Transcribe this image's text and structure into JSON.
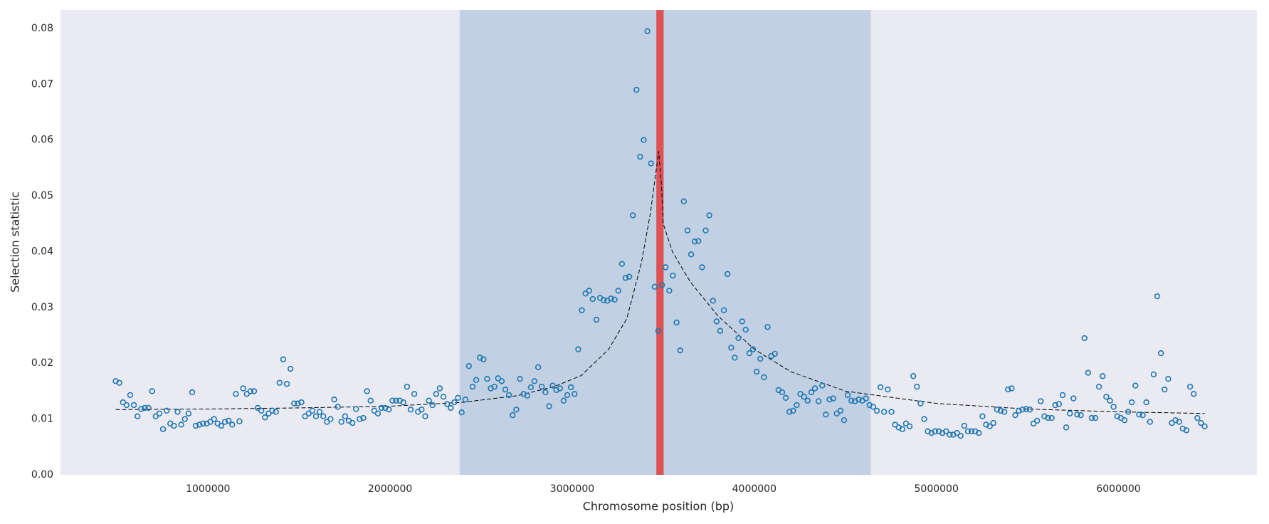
{
  "chart_data": {
    "type": "scatter",
    "xlabel": "Chromosome position (bp)",
    "ylabel": "Selection statistic",
    "xlim": [
      190000,
      6760000
    ],
    "ylim": [
      0,
      0.0833
    ],
    "xticks": [
      1000000,
      2000000,
      3000000,
      4000000,
      5000000,
      6000000
    ],
    "yticks": [
      {
        "value": 0,
        "label": "0.00"
      },
      {
        "value": 0.01,
        "label": "0.01"
      },
      {
        "value": 0.02,
        "label": "0.02"
      },
      {
        "value": 0.03,
        "label": "0.03"
      },
      {
        "value": 0.04,
        "label": "0.04"
      },
      {
        "value": 0.05,
        "label": "0.05"
      },
      {
        "value": 0.06,
        "label": "0.06"
      },
      {
        "value": 0.07,
        "label": "0.07"
      },
      {
        "value": 0.08,
        "label": "0.08"
      }
    ],
    "grid": true,
    "regions": [
      {
        "span": [
          2382000,
          4640000
        ],
        "color": "#4682b4",
        "opacity": 0.25
      },
      {
        "span": [
          3462000,
          3502000
        ],
        "color": "#e03c3c",
        "opacity": 0.85
      }
    ],
    "x": [
      493000,
      513000,
      533000,
      553000,
      573000,
      593000,
      613000,
      633000,
      653000,
      673000,
      693000,
      713000,
      733000,
      753000,
      773000,
      793000,
      813000,
      833000,
      853000,
      873000,
      893000,
      913000,
      933000,
      953000,
      973000,
      993000,
      1013000,
      1033000,
      1053000,
      1073000,
      1093000,
      1113000,
      1133000,
      1153000,
      1173000,
      1193000,
      1213000,
      1233000,
      1253000,
      1273000,
      1293000,
      1313000,
      1333000,
      1353000,
      1373000,
      1393000,
      1413000,
      1433000,
      1453000,
      1473000,
      1493000,
      1513000,
      1533000,
      1553000,
      1573000,
      1593000,
      1613000,
      1633000,
      1653000,
      1673000,
      1693000,
      1713000,
      1733000,
      1753000,
      1773000,
      1793000,
      1813000,
      1833000,
      1853000,
      1873000,
      1893000,
      1913000,
      1933000,
      1953000,
      1973000,
      1993000,
      2013000,
      2033000,
      2053000,
      2073000,
      2093000,
      2113000,
      2133000,
      2153000,
      2173000,
      2193000,
      2213000,
      2233000,
      2253000,
      2273000,
      2293000,
      2313000,
      2333000,
      2353000,
      2373000,
      2393000,
      2413000,
      2433000,
      2453000,
      2473000,
      2493000,
      2513000,
      2533000,
      2553000,
      2573000,
      2593000,
      2613000,
      2633000,
      2653000,
      2673000,
      2693000,
      2713000,
      2733000,
      2753000,
      2773000,
      2793000,
      2813000,
      2833000,
      2853000,
      2873000,
      2893000,
      2913000,
      2933000,
      2953000,
      2973000,
      2993000,
      3013000,
      3033000,
      3053000,
      3073000,
      3093000,
      3113000,
      3133000,
      3153000,
      3173000,
      3193000,
      3213000,
      3233000,
      3253000,
      3273000,
      3293000,
      3313000,
      3333000,
      3353000,
      3373000,
      3393000,
      3413000,
      3433000,
      3453000,
      3473000,
      3493000,
      3513000,
      3533000,
      3553000,
      3573000,
      3593000,
      3613000,
      3633000,
      3653000,
      3673000,
      3693000,
      3713000,
      3733000,
      3753000,
      3773000,
      3793000,
      3813000,
      3833000,
      3853000,
      3873000,
      3893000,
      3913000,
      3933000,
      3953000,
      3973000,
      3993000,
      4013000,
      4033000,
      4053000,
      4073000,
      4093000,
      4113000,
      4133000,
      4153000,
      4173000,
      4193000,
      4213000,
      4233000,
      4253000,
      4273000,
      4293000,
      4313000,
      4333000,
      4353000,
      4373000,
      4393000,
      4413000,
      4433000,
      4453000,
      4473000,
      4493000,
      4513000,
      4533000,
      4553000,
      4573000,
      4593000,
      4613000,
      4633000,
      4653000,
      4673000,
      4693000,
      4713000,
      4733000,
      4753000,
      4773000,
      4793000,
      4813000,
      4833000,
      4853000,
      4873000,
      4893000,
      4913000,
      4933000,
      4953000,
      4973000,
      4993000,
      5013000,
      5033000,
      5053000,
      5073000,
      5093000,
      5113000,
      5133000,
      5153000,
      5173000,
      5193000,
      5213000,
      5233000,
      5253000,
      5273000,
      5293000,
      5313000,
      5333000,
      5353000,
      5373000,
      5393000,
      5413000,
      5433000,
      5453000,
      5473000,
      5493000,
      5513000,
      5533000,
      5553000,
      5573000,
      5593000,
      5613000,
      5633000,
      5653000,
      5673000,
      5693000,
      5713000,
      5733000,
      5753000,
      5773000,
      5793000,
      5813000,
      5833000,
      5853000,
      5873000,
      5893000,
      5913000,
      5933000,
      5953000,
      5973000,
      5993000,
      6013000,
      6033000,
      6053000,
      6073000,
      6093000,
      6113000,
      6133000,
      6153000,
      6173000,
      6193000,
      6213000,
      6233000,
      6253000,
      6273000,
      6293000,
      6313000,
      6333000,
      6353000,
      6373000,
      6393000,
      6413000,
      6433000,
      6453000,
      6473000
    ],
    "series": [
      {
        "color": "#1f77b4",
        "values": [
          0.0168,
          0.0165,
          0.013,
          0.0125,
          0.0143,
          0.0125,
          0.0105,
          0.0118,
          0.012,
          0.012,
          0.015,
          0.0105,
          0.011,
          0.0082,
          0.0115,
          0.0092,
          0.0088,
          0.0113,
          0.009,
          0.01,
          0.011,
          0.0148,
          0.0088,
          0.009,
          0.0092,
          0.0092,
          0.0095,
          0.01,
          0.0092,
          0.0088,
          0.0095,
          0.0097,
          0.009,
          0.0145,
          0.0096,
          0.0155,
          0.0145,
          0.015,
          0.015,
          0.012,
          0.0115,
          0.0103,
          0.011,
          0.0115,
          0.0113,
          0.0165,
          0.0207,
          0.0163,
          0.019,
          0.0128,
          0.0128,
          0.013,
          0.0105,
          0.011,
          0.0115,
          0.0105,
          0.0113,
          0.0105,
          0.0095,
          0.01,
          0.0135,
          0.0122,
          0.0095,
          0.0105,
          0.0097,
          0.0093,
          0.0118,
          0.01,
          0.0102,
          0.015,
          0.0133,
          0.0115,
          0.011,
          0.012,
          0.012,
          0.0117,
          0.0133,
          0.0133,
          0.0133,
          0.013,
          0.0158,
          0.0117,
          0.0145,
          0.0113,
          0.0117,
          0.0105,
          0.0133,
          0.0125,
          0.0145,
          0.0155,
          0.014,
          0.0127,
          0.012,
          0.013,
          0.0138,
          0.0112,
          0.0135,
          0.0195,
          0.0158,
          0.017,
          0.021,
          0.0207,
          0.0172,
          0.0155,
          0.0158,
          0.0173,
          0.0168,
          0.0153,
          0.0143,
          0.0107,
          0.0117,
          0.0172,
          0.0145,
          0.0142,
          0.0157,
          0.0168,
          0.0193,
          0.0158,
          0.0148,
          0.0123,
          0.016,
          0.0152,
          0.0155,
          0.0133,
          0.0143,
          0.0157,
          0.0145,
          0.0225,
          0.0295,
          0.0325,
          0.033,
          0.0315,
          0.0278,
          0.0317,
          0.0313,
          0.0312,
          0.0316,
          0.0314,
          0.033,
          0.0378,
          0.0353,
          0.0355,
          0.0465,
          0.069,
          0.057,
          0.06,
          0.0795,
          0.0558,
          0.0337,
          0.0258,
          0.034,
          0.0372,
          0.033,
          0.0357,
          0.0273,
          0.0223,
          0.049,
          0.0438,
          0.0395,
          0.0418,
          0.0419,
          0.0372,
          0.0438,
          0.0465,
          0.0312,
          0.0275,
          0.0258,
          0.0295,
          0.036,
          0.0228,
          0.021,
          0.0245,
          0.0275,
          0.026,
          0.0218,
          0.0225,
          0.0185,
          0.0208,
          0.0175,
          0.0265,
          0.0213,
          0.0217,
          0.0152,
          0.0148,
          0.0138,
          0.0113,
          0.0115,
          0.0125,
          0.0145,
          0.014,
          0.0133,
          0.0148,
          0.0155,
          0.0132,
          0.016,
          0.0108,
          0.0135,
          0.0137,
          0.011,
          0.0115,
          0.0098,
          0.0143,
          0.0133,
          0.0132,
          0.0135,
          0.0133,
          0.0137,
          0.0125,
          0.0122,
          0.0115,
          0.0157,
          0.0113,
          0.0153,
          0.0113,
          0.009,
          0.0085,
          0.0082,
          0.0092,
          0.0087,
          0.0177,
          0.0158,
          0.0128,
          0.01,
          0.0078,
          0.0075,
          0.0078,
          0.0078,
          0.0075,
          0.0078,
          0.0072,
          0.0072,
          0.0075,
          0.007,
          0.0088,
          0.0078,
          0.0078,
          0.0078,
          0.0075,
          0.0105,
          0.009,
          0.0087,
          0.0093,
          0.0117,
          0.0115,
          0.0113,
          0.0153,
          0.0155,
          0.0107,
          0.0115,
          0.0117,
          0.0118,
          0.0117,
          0.0092,
          0.0097,
          0.0132,
          0.0105,
          0.0102,
          0.0102,
          0.0125,
          0.0127,
          0.0143,
          0.0085,
          0.011,
          0.0137,
          0.0108,
          0.0107,
          0.0245,
          0.0183,
          0.0102,
          0.0102,
          0.0158,
          0.0177,
          0.014,
          0.0133,
          0.0122,
          0.0105,
          0.0102,
          0.0098,
          0.0113,
          0.013,
          0.016,
          0.0108,
          0.0107,
          0.013,
          0.0095,
          0.018,
          0.032,
          0.0218,
          0.0153,
          0.0172,
          0.0093,
          0.0098,
          0.0095,
          0.0083,
          0.008,
          0.0158,
          0.0145,
          0.0102,
          0.0093,
          0.0087
        ]
      }
    ],
    "fit": {
      "color": "#000000",
      "dashed": true,
      "x": [
        493000,
        1000000,
        1500000,
        2000000,
        2400000,
        2700000,
        2900000,
        3050000,
        3200000,
        3300000,
        3380000,
        3430000,
        3475000,
        3490000,
        3500000,
        3550000,
        3650000,
        3800000,
        4000000,
        4200000,
        4500000,
        5000000,
        5500000,
        6000000,
        6473000
      ],
      "values": [
        0.0117,
        0.0118,
        0.012,
        0.0123,
        0.013,
        0.0142,
        0.0158,
        0.0178,
        0.0225,
        0.028,
        0.038,
        0.047,
        0.058,
        0.052,
        0.045,
        0.04,
        0.0345,
        0.0285,
        0.0225,
        0.0185,
        0.015,
        0.0128,
        0.0118,
        0.0113,
        0.011
      ]
    }
  }
}
